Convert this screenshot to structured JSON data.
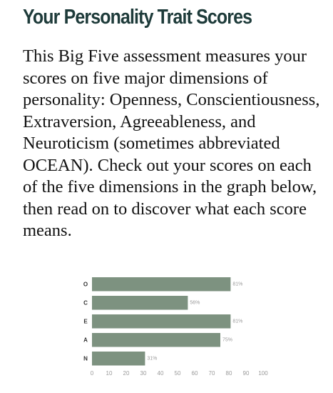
{
  "page": {
    "title": "Your Personality Trait Scores",
    "intro": "This Big Five assessment measures your scores on five major dimensions of personality: Openness, Conscientiousness, Extraversion, Agreeableness, and Neuroticism (sometimes abbreviated OCEAN). Check out your scores on each of the five dimensions in the graph below, then read on to discover what each score means."
  },
  "colors": {
    "title": "#1e3b3a",
    "bar": "#7d9280",
    "text": "#111111",
    "axis_text": "#9a9a9a",
    "label_text": "#333333"
  },
  "chart_data": {
    "type": "bar",
    "orientation": "horizontal",
    "categories": [
      "O",
      "C",
      "E",
      "A",
      "N"
    ],
    "values": [
      81,
      56,
      81,
      75,
      31
    ],
    "value_labels": [
      "81%",
      "56%",
      "81%",
      "75%",
      "31%"
    ],
    "xlim": [
      0,
      100
    ],
    "xticks": [
      0,
      10,
      20,
      30,
      40,
      50,
      60,
      70,
      80,
      90,
      100
    ],
    "xtick_labels": [
      "0",
      "10",
      "20",
      "30",
      "40",
      "50",
      "60",
      "70",
      "80",
      "90",
      "100"
    ],
    "title": "",
    "xlabel": "",
    "ylabel": "",
    "grid": false,
    "legend": "none"
  }
}
